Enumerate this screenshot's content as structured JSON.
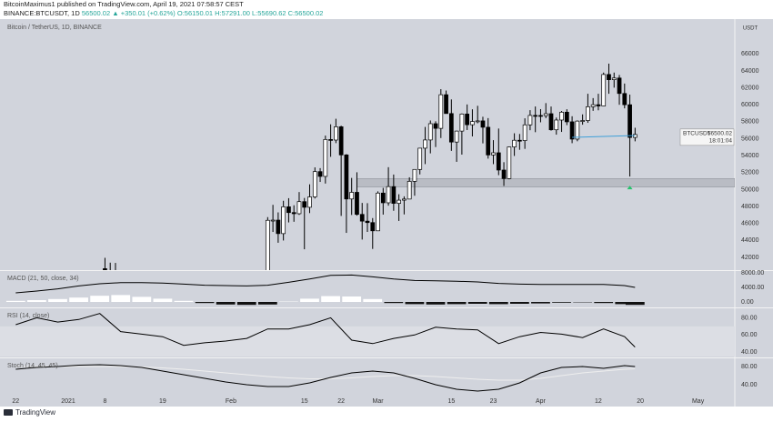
{
  "header": {
    "author_line": "BitcoinMaximus1 published on TradingView.com, April 19, 2021 07:58:57 CEST",
    "symbol": "BINANCE:BTCUSDT, 1D",
    "quote": "56500.02 ▲ +350.01 (+0.62%) O:56150.01 H:57291.00 L:55690.62 C:56500.02"
  },
  "footer": {
    "brand": "TradingView"
  },
  "chart_data": [
    {
      "type": "candlestick",
      "title": "Bitcoin / TetherUS, 1D, BINANCE",
      "symbol": "BTCUSDT",
      "countdown": "18:01:04",
      "axis_unit": "USDT",
      "x": [
        "2021-01-08",
        "2021-01-09",
        "2021-01-10",
        "2021-02-08",
        "2021-02-09",
        "2021-02-10",
        "2021-02-11",
        "2021-02-12",
        "2021-02-13",
        "2021-02-14",
        "2021-02-15",
        "2021-02-16",
        "2021-02-17",
        "2021-02-18",
        "2021-02-19",
        "2021-02-20",
        "2021-02-21",
        "2021-02-22",
        "2021-02-23",
        "2021-02-24",
        "2021-02-25",
        "2021-02-26",
        "2021-02-27",
        "2021-02-28",
        "2021-03-01",
        "2021-03-02",
        "2021-03-03",
        "2021-03-04",
        "2021-03-05",
        "2021-03-06",
        "2021-03-07",
        "2021-03-08",
        "2021-03-09",
        "2021-03-10",
        "2021-03-11",
        "2021-03-12",
        "2021-03-13",
        "2021-03-14",
        "2021-03-15",
        "2021-03-16",
        "2021-03-17",
        "2021-03-18",
        "2021-03-19",
        "2021-03-20",
        "2021-03-21",
        "2021-03-22",
        "2021-03-23",
        "2021-03-24",
        "2021-03-25",
        "2021-03-26",
        "2021-03-27",
        "2021-03-28",
        "2021-03-29",
        "2021-03-30",
        "2021-03-31",
        "2021-04-01",
        "2021-04-02",
        "2021-04-03",
        "2021-04-04",
        "2021-04-05",
        "2021-04-06",
        "2021-04-07",
        "2021-04-08",
        "2021-04-09",
        "2021-04-10",
        "2021-04-11",
        "2021-04-12",
        "2021-04-13",
        "2021-04-14",
        "2021-04-15",
        "2021-04-16",
        "2021-04-17",
        "2021-04-18",
        "2021-04-19"
      ],
      "open": [
        40670,
        40240,
        40050,
        38886,
        46374,
        46397,
        44807,
        47969,
        47287,
        47153,
        48577,
        47911,
        49133,
        52119,
        51552,
        55906,
        55841,
        57408,
        54087,
        48891,
        49676,
        47073,
        46276,
        46106,
        45135,
        49587,
        48441,
        50349,
        48374,
        48751,
        48882,
        50971,
        52375,
        54884,
        55851,
        57773,
        57221,
        61188,
        58968,
        55605,
        56900,
        58912,
        57648,
        58030,
        58102,
        57351,
        54083,
        54340,
        52303,
        51293,
        55025,
        55817,
        55777,
        57635,
        58746,
        58740,
        58720,
        58950,
        57051,
        58202,
        59129,
        57991,
        55953,
        58077,
        58142,
        59770,
        60007,
        59860,
        63575,
        62959,
        63159,
        61334,
        60006,
        56150.01
      ],
      "high": [
        41950,
        41380,
        41350,
        46750,
        48200,
        47310,
        48678,
        48985,
        48150,
        49707,
        49010,
        50620,
        52618,
        52530,
        56368,
        57700,
        58352,
        57533,
        54183,
        51374,
        52041,
        48424,
        48394,
        46638,
        49790,
        50200,
        52640,
        51773,
        49448,
        49200,
        51450,
        52402,
        54895,
        57387,
        58150,
        58058,
        61844,
        61683,
        60633,
        56938,
        58982,
        60040,
        59468,
        59880,
        58589,
        58430,
        55830,
        57200,
        53230,
        55073,
        56640,
        56559,
        58405,
        59368,
        59800,
        59490,
        60200,
        59791,
        58493,
        59272,
        59475,
        58650,
        58153,
        58869,
        61300,
        60790,
        61300,
        63800,
        64854,
        63800,
        63520,
        62506,
        61200,
        57291.0
      ],
      "low": [
        36500,
        38720,
        35111,
        37990,
        45000,
        43727,
        43994,
        46125,
        46202,
        47014,
        42960,
        47225,
        48947,
        50901,
        50710,
        53863,
        55477,
        46891,
        44892,
        47004,
        46923,
        44106,
        45000,
        43000,
        45115,
        47047,
        48101,
        47500,
        46300,
        47070,
        48882,
        49274,
        51789,
        53005,
        54272,
        55013,
        56078,
        58963,
        54568,
        53271,
        54123,
        57023,
        56270,
        57820,
        55450,
        53650,
        53000,
        51700,
        50427,
        51214,
        53966,
        54691,
        54800,
        57000,
        56769,
        57935,
        58427,
        56956,
        56478,
        56800,
        57600,
        55473,
        55700,
        57654,
        57875,
        59289,
        59350,
        59817,
        61301,
        62020,
        60000,
        59580,
        51541,
        55690.62
      ],
      "close": [
        40240,
        40050,
        38150,
        46374,
        46397,
        44807,
        47969,
        47287,
        47153,
        48577,
        47911,
        49133,
        52119,
        51552,
        55906,
        55841,
        57408,
        54087,
        48891,
        49676,
        47073,
        46276,
        46106,
        45135,
        49587,
        48441,
        50349,
        48374,
        48751,
        48882,
        50971,
        52375,
        54884,
        55851,
        57773,
        57221,
        61188,
        58968,
        55605,
        56900,
        58912,
        57648,
        58030,
        58102,
        57351,
        54083,
        54340,
        52303,
        51293,
        55025,
        55817,
        55777,
        57635,
        58746,
        58740,
        58720,
        58950,
        57051,
        58202,
        59129,
        57991,
        55953,
        58077,
        58142,
        59770,
        60007,
        59860,
        63575,
        62959,
        63159,
        61334,
        60006,
        56150,
        56500.02
      ],
      "up_color": "#ffffff",
      "down_color": "#000000",
      "zone": {
        "from": "2021-02-25",
        "low": 50300,
        "high": 51300,
        "color": "#b9bcc4"
      },
      "trendline": {
        "x": [
          "2021-04-07",
          "2021-04-19"
        ],
        "y": [
          56160,
          56380
        ],
        "color": "#3d9fd8"
      },
      "signal": "2021-04-18",
      "signal_color": "#26c26c",
      "xlim": [
        "2020-12-19",
        "2021-05-08"
      ],
      "ylim": [
        40500,
        70000
      ],
      "yticks": [
        42000,
        44000,
        46000,
        48000,
        50000,
        52000,
        54000,
        56000,
        58000,
        60000,
        62000,
        64000,
        66000
      ],
      "xticks": [
        {
          "value": "2020-12-22",
          "label": "22"
        },
        {
          "value": "2021-01-01",
          "label": "2021"
        },
        {
          "value": "2021-01-08",
          "label": "8"
        },
        {
          "value": "2021-01-19",
          "label": "19"
        },
        {
          "value": "2021-02-01",
          "label": "Feb"
        },
        {
          "value": "2021-02-15",
          "label": "15"
        },
        {
          "value": "2021-02-22",
          "label": "22"
        },
        {
          "value": "2021-03-01",
          "label": "Mar"
        },
        {
          "value": "2021-03-15",
          "label": "15"
        },
        {
          "value": "2021-03-23",
          "label": "23"
        },
        {
          "value": "2021-04-01",
          "label": "Apr"
        },
        {
          "value": "2021-04-12",
          "label": "12"
        },
        {
          "value": "2021-04-20",
          "label": "20"
        },
        {
          "value": "2021-05-01",
          "label": "May"
        }
      ]
    },
    {
      "type": "macd",
      "title": "MACD (21, 50, close, 34)",
      "x": [
        "2020-12-22",
        "2020-12-26",
        "2020-12-30",
        "2021-01-03",
        "2021-01-07",
        "2021-01-11",
        "2021-01-15",
        "2021-01-19",
        "2021-01-23",
        "2021-01-27",
        "2021-01-31",
        "2021-02-04",
        "2021-02-08",
        "2021-02-12",
        "2021-02-16",
        "2021-02-20",
        "2021-02-24",
        "2021-02-28",
        "2021-03-04",
        "2021-03-08",
        "2021-03-12",
        "2021-03-16",
        "2021-03-20",
        "2021-03-24",
        "2021-03-28",
        "2021-04-01",
        "2021-04-05",
        "2021-04-09",
        "2021-04-13",
        "2021-04-17",
        "2021-04-19"
      ],
      "macd": [
        2500,
        3000,
        3600,
        4400,
        5000,
        5300,
        5300,
        5200,
        4900,
        4600,
        4500,
        4400,
        4600,
        5400,
        6300,
        7300,
        7400,
        6900,
        6300,
        5900,
        5800,
        5700,
        5500,
        5100,
        4900,
        4800,
        4800,
        4800,
        4800,
        4500,
        4000
      ],
      "histogram": [
        300,
        500,
        800,
        1200,
        1700,
        1900,
        1400,
        900,
        300,
        -300,
        -700,
        -800,
        -700,
        100,
        900,
        1600,
        1500,
        800,
        -300,
        -600,
        -700,
        -600,
        -500,
        -600,
        -500,
        -400,
        -200,
        -100,
        -300,
        -600,
        -800
      ],
      "line_color": "#000000",
      "hist_up_color": "#ffffff",
      "hist_down_color": "#111111",
      "xlim": [
        "2020-12-19",
        "2021-05-08"
      ],
      "ylim": [
        -1250,
        8500
      ],
      "yticks": [
        {
          "value": 8000,
          "label": "8000.00"
        },
        {
          "value": 4000,
          "label": "4000.00"
        },
        {
          "value": 0,
          "label": "0.00"
        }
      ]
    },
    {
      "type": "rsi",
      "title": "RSI (14, close)",
      "x": [
        "2020-12-22",
        "2020-12-26",
        "2020-12-30",
        "2021-01-03",
        "2021-01-07",
        "2021-01-11",
        "2021-01-15",
        "2021-01-19",
        "2021-01-23",
        "2021-01-27",
        "2021-01-31",
        "2021-02-04",
        "2021-02-08",
        "2021-02-12",
        "2021-02-16",
        "2021-02-20",
        "2021-02-24",
        "2021-02-28",
        "2021-03-04",
        "2021-03-08",
        "2021-03-12",
        "2021-03-16",
        "2021-03-20",
        "2021-03-24",
        "2021-03-28",
        "2021-04-01",
        "2021-04-05",
        "2021-04-09",
        "2021-04-13",
        "2021-04-17",
        "2021-04-19"
      ],
      "values": [
        72,
        80,
        75,
        78,
        85,
        64,
        61,
        58,
        48,
        51,
        53,
        56,
        67,
        67,
        72,
        80,
        54,
        50,
        56,
        60,
        69,
        67,
        66,
        50,
        58,
        63,
        61,
        57,
        67,
        58,
        46
      ],
      "color": "#000000",
      "band": [
        30,
        70
      ],
      "band_color": "#dcdee4",
      "xlim": [
        "2020-12-19",
        "2021-05-08"
      ],
      "ylim": [
        35,
        91
      ],
      "yticks": [
        {
          "value": 80,
          "label": "80.00"
        },
        {
          "value": 60,
          "label": "60.00"
        },
        {
          "value": 40,
          "label": "40.00"
        }
      ]
    },
    {
      "type": "stoch",
      "title": "Stoch (14, 45, 45)",
      "x": [
        "2020-12-22",
        "2020-12-26",
        "2020-12-30",
        "2021-01-03",
        "2021-01-07",
        "2021-01-11",
        "2021-01-15",
        "2021-01-19",
        "2021-01-23",
        "2021-01-27",
        "2021-01-31",
        "2021-02-04",
        "2021-02-08",
        "2021-02-12",
        "2021-02-16",
        "2021-02-20",
        "2021-02-24",
        "2021-02-28",
        "2021-03-04",
        "2021-03-08",
        "2021-03-12",
        "2021-03-16",
        "2021-03-20",
        "2021-03-24",
        "2021-03-28",
        "2021-04-01",
        "2021-04-05",
        "2021-04-09",
        "2021-04-13",
        "2021-04-17",
        "2021-04-19"
      ],
      "series": [
        {
          "color": "#000000",
          "values": [
            74,
            78,
            80,
            83,
            84,
            82,
            78,
            70,
            62,
            54,
            46,
            40,
            36,
            36,
            44,
            56,
            66,
            70,
            66,
            54,
            40,
            30,
            26,
            30,
            44,
            66,
            78,
            80,
            76,
            82,
            80
          ]
        },
        {
          "color": "#eeeeee",
          "values": [
            80,
            80,
            80,
            80,
            80,
            80,
            79,
            77,
            74,
            70,
            66,
            62,
            58,
            55,
            53,
            53,
            55,
            58,
            60,
            60,
            58,
            55,
            52,
            50,
            50,
            54,
            60,
            66,
            70,
            74,
            75
          ]
        }
      ],
      "xlim": [
        "2020-12-19",
        "2021-05-08"
      ],
      "ylim": [
        14,
        98
      ],
      "yticks": [
        {
          "value": 80,
          "label": "80.00"
        },
        {
          "value": 40,
          "label": "40.00"
        }
      ]
    }
  ]
}
